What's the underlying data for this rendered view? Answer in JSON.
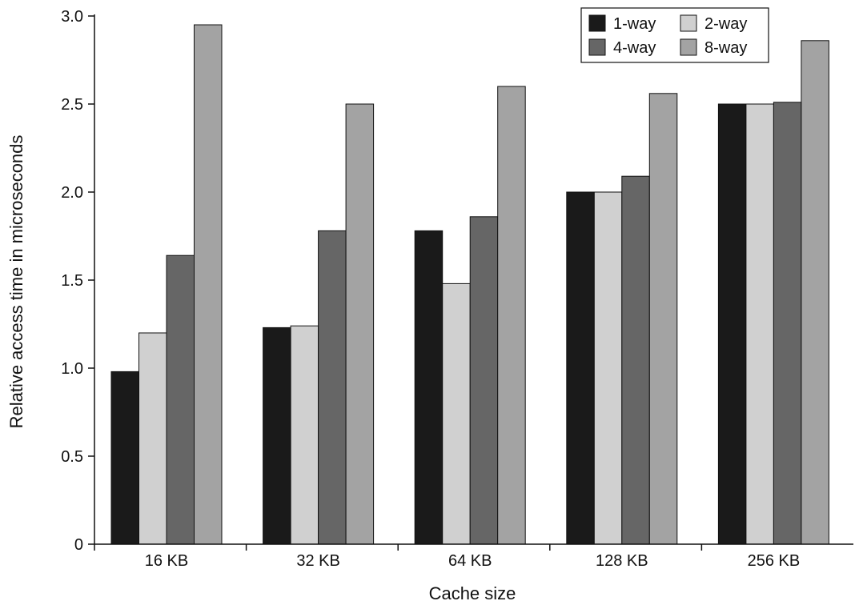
{
  "chart_data": {
    "type": "bar",
    "xlabel": "Cache size",
    "ylabel": "Relative access time in microseconds",
    "categories": [
      "16 KB",
      "32 KB",
      "64 KB",
      "128 KB",
      "256 KB"
    ],
    "ylim": [
      0,
      3.0
    ],
    "yticks": [
      {
        "value": 0,
        "label": "0"
      },
      {
        "value": 0.5,
        "label": "0.5"
      },
      {
        "value": 1.0,
        "label": "1.0"
      },
      {
        "value": 1.5,
        "label": "1.5"
      },
      {
        "value": 2.0,
        "label": "2.0"
      },
      {
        "value": 2.5,
        "label": "2.5"
      },
      {
        "value": 3.0,
        "label": "3.0"
      }
    ],
    "grid": false,
    "legend_position": "top-right",
    "series": [
      {
        "name": "1-way",
        "color": "#1a1a1a",
        "values": [
          0.98,
          1.23,
          1.78,
          2.0,
          2.5
        ]
      },
      {
        "name": "2-way",
        "color": "#d0d0d0",
        "values": [
          1.2,
          1.24,
          1.48,
          2.0,
          2.5
        ]
      },
      {
        "name": "4-way",
        "color": "#666666",
        "values": [
          1.64,
          1.78,
          1.86,
          2.09,
          2.51
        ]
      },
      {
        "name": "8-way",
        "color": "#a3a3a3",
        "values": [
          2.95,
          2.5,
          2.6,
          2.56,
          2.86
        ]
      }
    ]
  }
}
